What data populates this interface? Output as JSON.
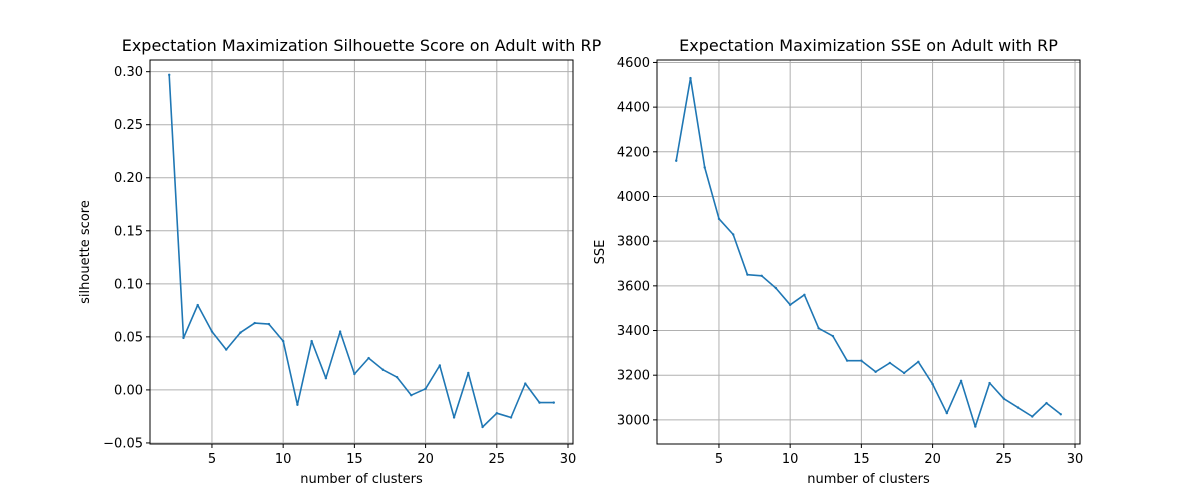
{
  "chart_data": [
    {
      "type": "line",
      "title": "Expectation Maximization Silhouette Score on Adult with RP",
      "xlabel": "number of clusters",
      "ylabel": "silhouette score",
      "xlim": [
        0.65,
        30.35
      ],
      "ylim": [
        -0.051,
        0.311
      ],
      "xticks": [
        5,
        10,
        15,
        20,
        25,
        30
      ],
      "xtick_labels": [
        "5",
        "10",
        "15",
        "20",
        "25",
        "30"
      ],
      "yticks": [
        -0.05,
        0.0,
        0.05,
        0.1,
        0.15,
        0.2,
        0.25,
        0.3
      ],
      "ytick_labels": [
        "−0.05",
        "0.00",
        "0.05",
        "0.10",
        "0.15",
        "0.20",
        "0.25",
        "0.30"
      ],
      "grid": true,
      "color": "#1f77b4",
      "x": [
        2,
        3,
        4,
        5,
        6,
        7,
        8,
        9,
        10,
        11,
        12,
        13,
        14,
        15,
        16,
        17,
        18,
        19,
        20,
        21,
        22,
        23,
        24,
        25,
        26,
        27,
        28,
        29
      ],
      "y": [
        0.297,
        0.049,
        0.08,
        0.055,
        0.038,
        0.054,
        0.063,
        0.062,
        0.046,
        -0.014,
        0.046,
        0.011,
        0.055,
        0.015,
        0.03,
        0.019,
        0.012,
        -0.005,
        0.001,
        0.023,
        -0.026,
        0.016,
        -0.035,
        -0.022,
        -0.026,
        0.006,
        -0.012,
        -0.012
      ]
    },
    {
      "type": "line",
      "title": "Expectation Maximization SSE on Adult with RP",
      "xlabel": "number of clusters",
      "ylabel": "SSE",
      "xlim": [
        0.65,
        30.35
      ],
      "ylim": [
        2892,
        4611
      ],
      "xticks": [
        5,
        10,
        15,
        20,
        25,
        30
      ],
      "xtick_labels": [
        "5",
        "10",
        "15",
        "20",
        "25",
        "30"
      ],
      "yticks": [
        3000,
        3200,
        3400,
        3600,
        3800,
        4000,
        4200,
        4400,
        4600
      ],
      "ytick_labels": [
        "3000",
        "3200",
        "3400",
        "3600",
        "3800",
        "4000",
        "4200",
        "4400",
        "4600"
      ],
      "grid": true,
      "color": "#1f77b4",
      "x": [
        2,
        3,
        4,
        5,
        6,
        7,
        8,
        9,
        10,
        11,
        12,
        13,
        14,
        15,
        16,
        17,
        18,
        19,
        20,
        21,
        22,
        23,
        24,
        25,
        26,
        27,
        28,
        29
      ],
      "y": [
        4160,
        4530,
        4130,
        3900,
        3830,
        3650,
        3645,
        3590,
        3515,
        3560,
        3410,
        3375,
        3265,
        3265,
        3215,
        3255,
        3210,
        3260,
        3160,
        3030,
        3175,
        2970,
        3165,
        3095,
        3055,
        3015,
        3075,
        3025
      ]
    }
  ]
}
